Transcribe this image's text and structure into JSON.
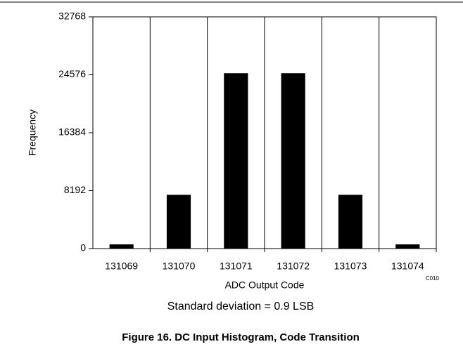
{
  "chart_data": {
    "type": "bar",
    "x_label": "ADC Output Code",
    "y_label": "Frequency",
    "categories": [
      "131069",
      "131070",
      "131071",
      "131072",
      "131073",
      "131074"
    ],
    "values": [
      600,
      7600,
      24800,
      24800,
      7600,
      600
    ],
    "color": "#000000",
    "ylim": [
      0,
      32768
    ],
    "yticks": [
      0,
      8192,
      16384,
      24576,
      32768
    ],
    "annotations": [
      "C010",
      "Standard deviation = 0.9 LSB"
    ],
    "caption": "Figure 16. DC Input Histogram, Code Transition"
  }
}
